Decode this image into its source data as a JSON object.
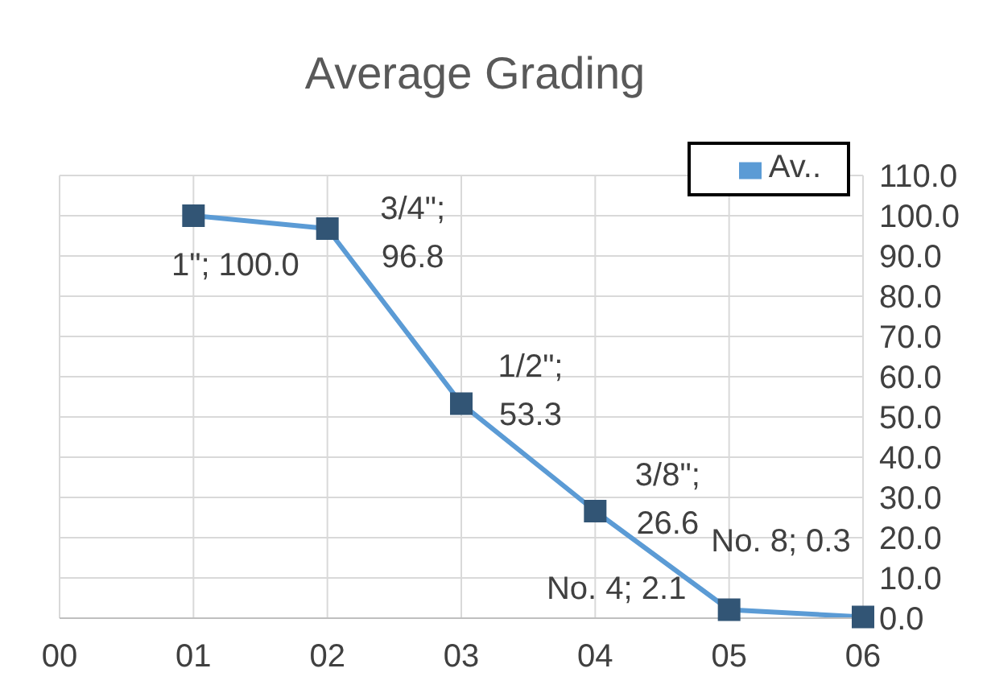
{
  "chart_data": {
    "type": "line",
    "title": "Average Grading",
    "x": [
      1,
      2,
      3,
      4,
      5,
      6
    ],
    "series": [
      {
        "name": "Av..",
        "color": "#5b9bd5",
        "values": [
          100.0,
          96.8,
          53.3,
          26.6,
          2.1,
          0.3
        ],
        "value_labels": [
          "1\"; 100.0",
          "3/4\"; 96.8",
          "1/2\"; 53.3",
          "3/8\"; 26.6",
          "No. 4; 2.1",
          "No. 8; 0.3"
        ]
      }
    ],
    "xlim": [
      0,
      6
    ],
    "xticks": [
      {
        "value": 0,
        "label": "00"
      },
      {
        "value": 1,
        "label": "01"
      },
      {
        "value": 2,
        "label": "02"
      },
      {
        "value": 3,
        "label": "03"
      },
      {
        "value": 4,
        "label": "04"
      },
      {
        "value": 5,
        "label": "05"
      },
      {
        "value": 6,
        "label": "06"
      }
    ],
    "ylim": [
      0,
      110
    ],
    "yticks": [
      {
        "value": 0,
        "label": "0.0"
      },
      {
        "value": 10,
        "label": "10.0"
      },
      {
        "value": 20,
        "label": "20.0"
      },
      {
        "value": 30,
        "label": "30.0"
      },
      {
        "value": 40,
        "label": "40.0"
      },
      {
        "value": 50,
        "label": "50.0"
      },
      {
        "value": 60,
        "label": "60.0"
      },
      {
        "value": 70,
        "label": "70.0"
      },
      {
        "value": 80,
        "label": "80.0"
      },
      {
        "value": 90,
        "label": "90.0"
      },
      {
        "value": 100,
        "label": "100.0"
      },
      {
        "value": 110,
        "label": "110.0"
      }
    ],
    "grid": true,
    "legend": "top right",
    "marker": "square",
    "line_style": "solid"
  }
}
